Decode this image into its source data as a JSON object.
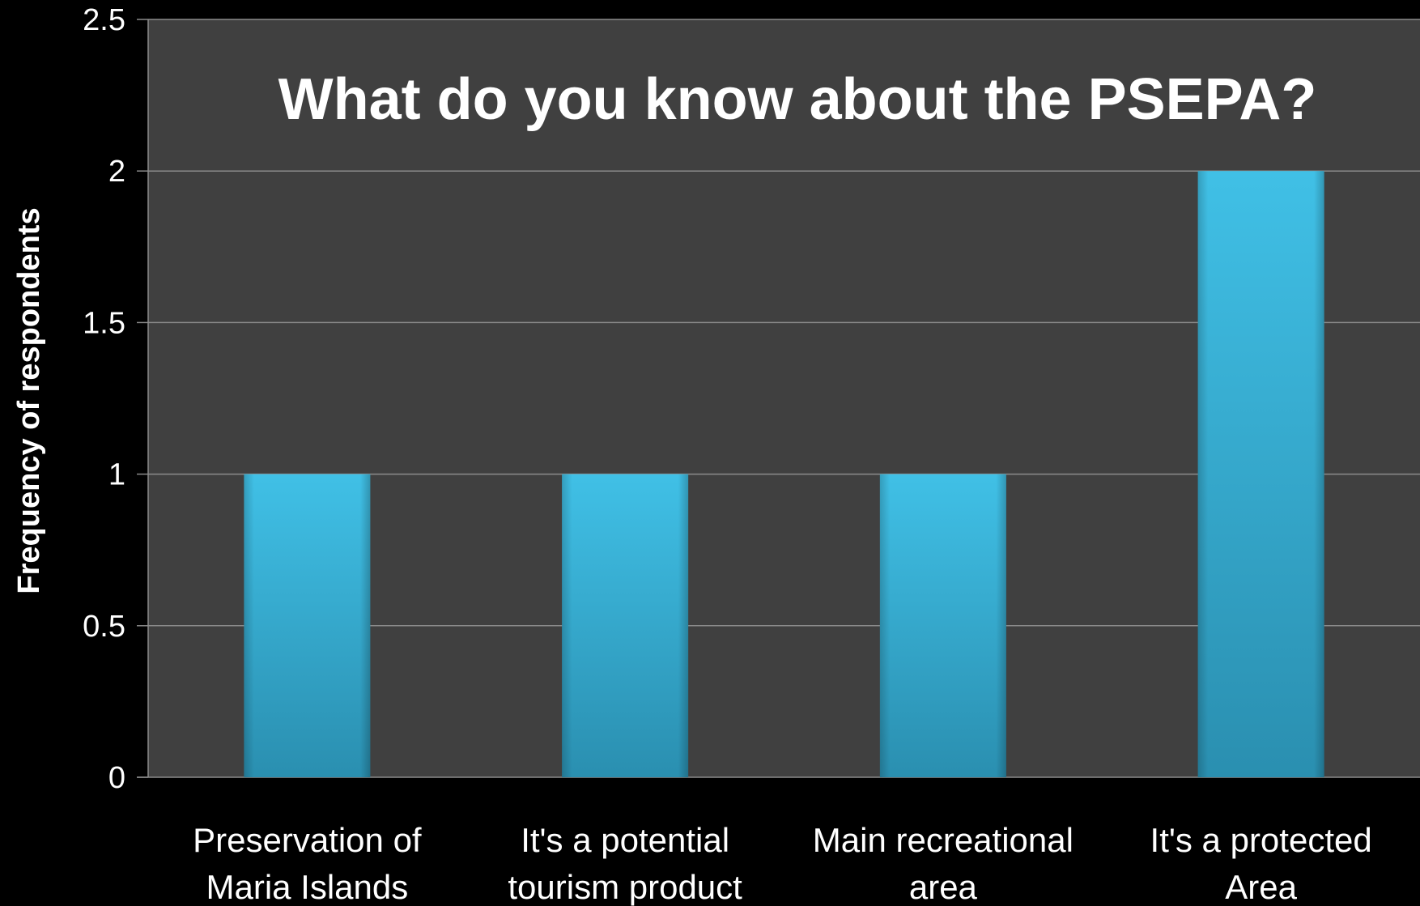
{
  "chart_data": {
    "type": "bar",
    "title": "What do you know about the PSEPA?",
    "xlabel": "",
    "ylabel": "Frequency of respondents",
    "categories": [
      [
        "Preservation of",
        "Maria Islands"
      ],
      [
        "It's a potential",
        "tourism product"
      ],
      [
        "Main recreational",
        "area"
      ],
      [
        "It's a protected",
        "Area"
      ]
    ],
    "values": [
      1,
      1,
      1,
      2
    ],
    "ylim": [
      0,
      2.5
    ],
    "yticks": [
      "0",
      "0.5",
      "1",
      "1.5",
      "2",
      "2.5"
    ],
    "grid": true,
    "legend": "none",
    "colors": {
      "background": "#000000",
      "plot_area": "#404040",
      "gridline": "#8c8c8c",
      "bar_top": "#40c0e6",
      "bar_bottom": "#2a8fb0",
      "text": "#ffffff"
    }
  }
}
